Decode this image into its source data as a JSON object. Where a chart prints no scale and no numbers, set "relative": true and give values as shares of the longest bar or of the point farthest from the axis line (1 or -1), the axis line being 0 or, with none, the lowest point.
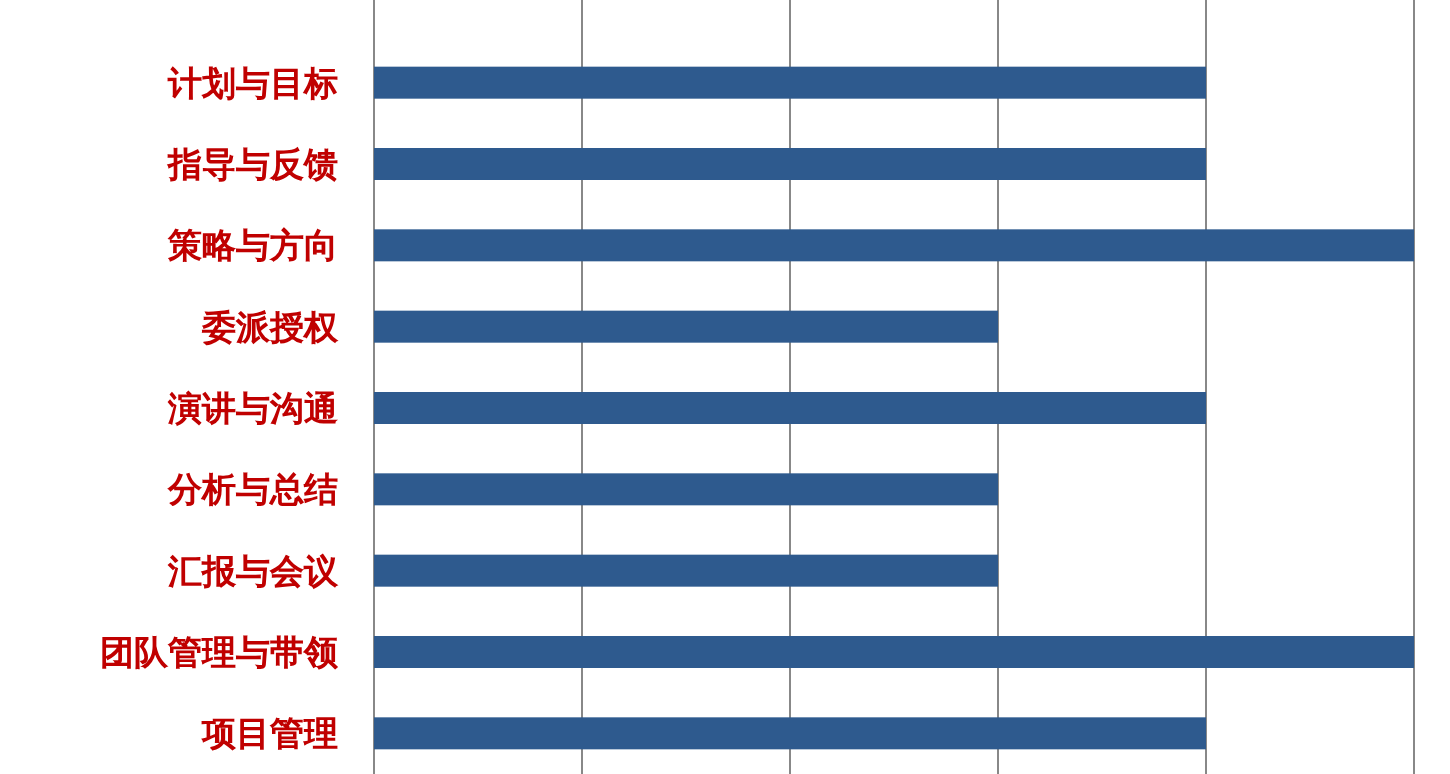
{
  "chart_data": {
    "type": "bar",
    "orientation": "horizontal",
    "relative": true,
    "grid": "x",
    "categories": [
      "计划与目标",
      "指导与反馈",
      "策略与方向",
      "委派授权",
      "演讲与沟通",
      "分析与总结",
      "汇报与会议",
      "团队管理与带领",
      "项目管理"
    ],
    "values": [
      0.8,
      0.8,
      1,
      0.6,
      0.8,
      0.6,
      0.6,
      1,
      0.8
    ],
    "color": "#2e5a8e"
  }
}
